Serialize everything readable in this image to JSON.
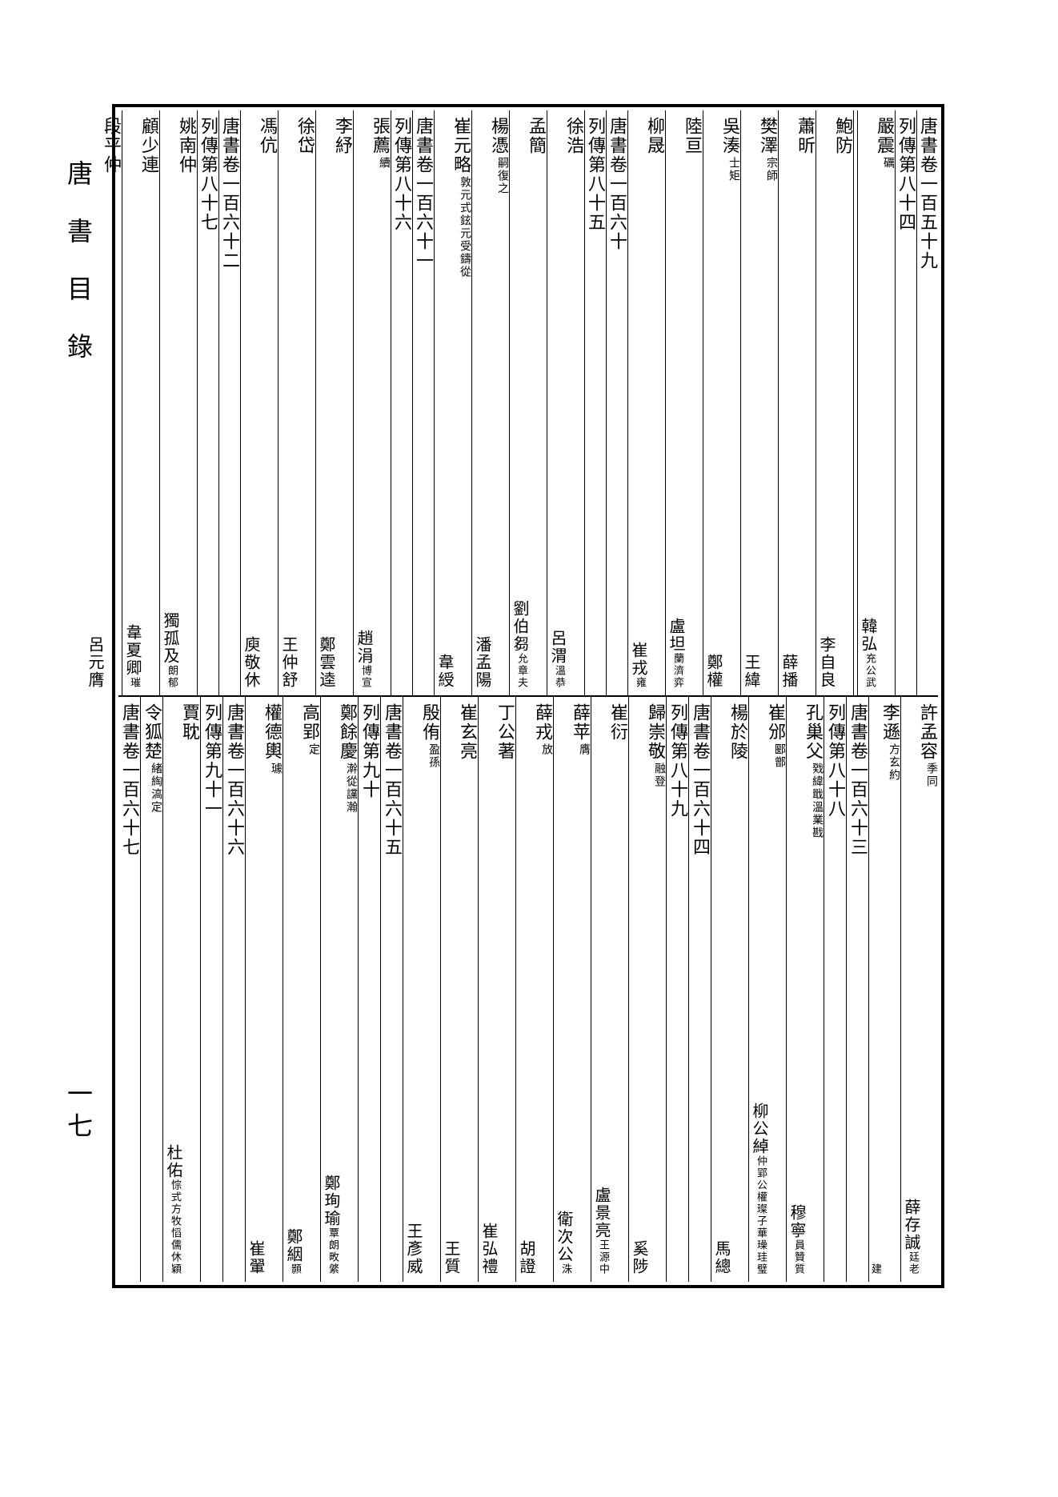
{
  "margin_title": "唐書目錄",
  "page_number": "一七",
  "upper_columns": [
    {
      "main": "唐書卷一百五十九",
      "sub": "",
      "second": "",
      "second_sub": ""
    },
    {
      "main": "列傳第八十四",
      "sub": "",
      "second": "",
      "second_sub": ""
    },
    {
      "main": "嚴震",
      "sub": "礪",
      "second": "韓弘",
      "second_sub": "充公武"
    },
    {
      "main": "",
      "sub": "",
      "second": "",
      "second_sub": ""
    },
    {
      "main": "鮑防",
      "sub": "",
      "second": "李自良",
      "second_sub": ""
    },
    {
      "main": "蕭昕",
      "sub": "",
      "second": "薛播",
      "second_sub": ""
    },
    {
      "main": "樊澤",
      "sub": "宗師",
      "second": "王緯",
      "second_sub": ""
    },
    {
      "main": "吳湊",
      "sub": "士矩",
      "second": "鄭權",
      "second_sub": ""
    },
    {
      "main": "陸亘",
      "sub": "",
      "second": "盧坦",
      "second_sub": "蘭濟弈"
    },
    {
      "main": "柳晟",
      "sub": "",
      "second": "崔戎",
      "second_sub": "雍"
    },
    {
      "main": "唐書卷一百六十",
      "sub": "",
      "second": "",
      "second_sub": ""
    },
    {
      "main": "列傳第八十五",
      "sub": "",
      "second": "",
      "second_sub": ""
    },
    {
      "main": "徐浩",
      "sub": "",
      "second": "呂渭",
      "second_sub": "溫恭"
    },
    {
      "main": "孟簡",
      "sub": "",
      "second": "劉伯芻",
      "second_sub": "允章夫"
    },
    {
      "main": "楊憑",
      "sub": "嗣復之",
      "second": "潘孟陽",
      "second_sub": ""
    },
    {
      "main": "崔元略",
      "sub": "敦元式鉉元受鑄從",
      "second": "韋綬",
      "second_sub": ""
    },
    {
      "main": "唐書卷一百六十一",
      "sub": "",
      "second": "",
      "second_sub": ""
    },
    {
      "main": "列傳第八十六",
      "sub": "",
      "second": "",
      "second_sub": ""
    },
    {
      "main": "張薦",
      "sub": "續",
      "second": "趙涓",
      "second_sub": "博宣"
    },
    {
      "main": "李紓",
      "sub": "",
      "second": "鄭雲逵",
      "second_sub": ""
    },
    {
      "main": "徐岱",
      "sub": "",
      "second": "王仲舒",
      "second_sub": ""
    },
    {
      "main": "馮伉",
      "sub": "",
      "second": "庾敬休",
      "second_sub": ""
    },
    {
      "main": "唐書卷一百六十二",
      "sub": "",
      "second": "",
      "second_sub": ""
    },
    {
      "main": "列傳第八十七",
      "sub": "",
      "second": "",
      "second_sub": ""
    },
    {
      "main": "姚南仲",
      "sub": "",
      "second": "獨孤及",
      "second_sub": "朗郁"
    },
    {
      "main": "顧少連",
      "sub": "",
      "second": "韋夏卿",
      "second_sub": "璀"
    },
    {
      "main": "段平仲",
      "sub": "",
      "second": "呂元膺",
      "second_sub": ""
    }
  ],
  "lower_columns": [
    {
      "main": "許孟容",
      "sub": "季同",
      "second": "薛存誠",
      "second_sub": "廷老"
    },
    {
      "main": "李遜",
      "sub": "方玄約",
      "second": "",
      "second_sub": "建"
    },
    {
      "main": "唐書卷一百六十三",
      "sub": "",
      "second": "",
      "second_sub": ""
    },
    {
      "main": "列傳第八十八",
      "sub": "",
      "second": "",
      "second_sub": ""
    },
    {
      "main": "孔巢父",
      "sub": "戣緯戢溫業戡",
      "second": "穆寧",
      "second_sub": "員贊質"
    },
    {
      "main": "崔邠",
      "sub": "郾鄫",
      "second": "柳公綽",
      "second_sub": "仲郢公權璨子華璪珪璧"
    },
    {
      "main": "楊於陵",
      "sub": "",
      "second": "馬總",
      "second_sub": ""
    },
    {
      "main": "唐書卷一百六十四",
      "sub": "",
      "second": "",
      "second_sub": ""
    },
    {
      "main": "列傳第八十九",
      "sub": "",
      "second": "",
      "second_sub": ""
    },
    {
      "main": "歸崇敬",
      "sub": "融登",
      "second": "奚陟",
      "second_sub": ""
    },
    {
      "main": "崔衍",
      "sub": "",
      "second": "盧景亮",
      "second_sub": "王源中"
    },
    {
      "main": "薛苹",
      "sub": "膺",
      "second": "衛次公",
      "second_sub": "洙"
    },
    {
      "main": "薛戎",
      "sub": "放",
      "second": "胡證",
      "second_sub": ""
    },
    {
      "main": "丁公著",
      "sub": "",
      "second": "崔弘禮",
      "second_sub": ""
    },
    {
      "main": "崔玄亮",
      "sub": "",
      "second": "王質",
      "second_sub": ""
    },
    {
      "main": "殷侑",
      "sub": "盈孫",
      "second": "王彥威",
      "second_sub": ""
    },
    {
      "main": "唐書卷一百六十五",
      "sub": "",
      "second": "",
      "second_sub": ""
    },
    {
      "main": "列傳第九十",
      "sub": "",
      "second": "",
      "second_sub": ""
    },
    {
      "main": "鄭餘慶",
      "sub": "澣從讜瀚",
      "second": "鄭珣瑜",
      "second_sub": "覃朗畋綮"
    },
    {
      "main": "高郢",
      "sub": "定",
      "second": "鄭絪",
      "second_sub": "顥"
    },
    {
      "main": "權德輿",
      "sub": "璩",
      "second": "崔翬",
      "second_sub": ""
    },
    {
      "main": "唐書卷一百六十六",
      "sub": "",
      "second": "",
      "second_sub": ""
    },
    {
      "main": "列傳第九十一",
      "sub": "",
      "second": "",
      "second_sub": ""
    },
    {
      "main": "賈耽",
      "sub": "",
      "second": "杜佑",
      "second_sub": "悰式方牧慆儒休穎"
    },
    {
      "main": "令狐楚",
      "sub": "緒綯滈定",
      "second": "",
      "second_sub": ""
    },
    {
      "main": "唐書卷一百六十七",
      "sub": "",
      "second": "",
      "second_sub": ""
    }
  ]
}
